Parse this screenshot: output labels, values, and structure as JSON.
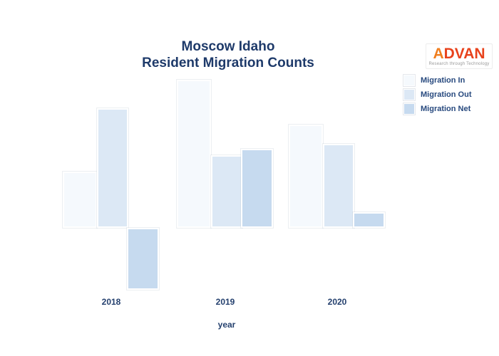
{
  "title": {
    "line1": "Moscow Idaho",
    "line2": "Resident Migration Counts"
  },
  "logo": {
    "brand": "ADVAN",
    "tagline": "Research through Technology",
    "brand_color": "#E8421C",
    "brand_accent_color": "#F07E1E"
  },
  "chart_data": {
    "type": "bar",
    "title": "Moscow Idaho Resident Migration Counts",
    "xlabel": "year",
    "ylabel": "",
    "categories": [
      "2018",
      "2019",
      "2020"
    ],
    "series": [
      {
        "name": "Migration In",
        "values": [
          79,
          208,
          145
        ],
        "color": "#F5F9FD"
      },
      {
        "name": "Migration Out",
        "values": [
          168,
          102,
          118
        ],
        "color": "#DCE8F5"
      },
      {
        "name": "Migration Net",
        "values": [
          -87,
          111,
          22
        ],
        "color": "#C6DAEF"
      }
    ],
    "baseline": 0,
    "grid": false,
    "y_axis_shown": false,
    "legend_position": "top-right",
    "text_color": "#1E3A6A"
  }
}
